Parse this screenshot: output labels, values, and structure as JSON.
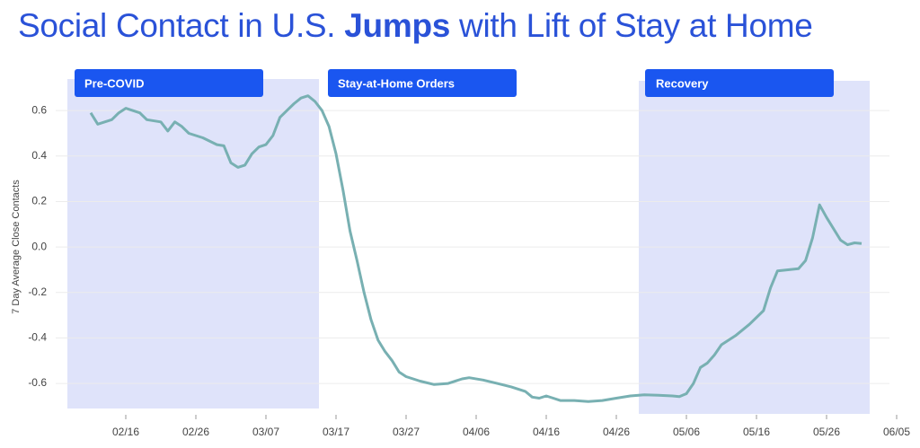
{
  "chart_data": {
    "type": "line",
    "title_start": "Social Contact in U.S.",
    "title_emphasis": "Jumps",
    "title_end": "with Lift of Stay at Home",
    "y_label": "7 Day Average Close Contacts",
    "periods": [
      "Pre-COVID",
      "Stay-at-Home Orders",
      "Recovery"
    ],
    "x": [
      "02/11",
      "02/12",
      "02/14",
      "02/15",
      "02/16",
      "02/18",
      "02/19",
      "02/21",
      "02/22",
      "02/23",
      "02/24",
      "02/25",
      "02/27",
      "02/29",
      "03/01",
      "03/02",
      "03/03",
      "03/04",
      "03/05",
      "03/06",
      "03/07",
      "03/08",
      "03/09",
      "03/10",
      "03/11",
      "03/12",
      "03/13",
      "03/14",
      "03/15",
      "03/16",
      "03/17",
      "03/18",
      "03/19",
      "03/20",
      "03/21",
      "03/22",
      "03/23",
      "03/24",
      "03/25",
      "03/26",
      "03/27",
      "03/29",
      "03/31",
      "04/02",
      "04/04",
      "04/05",
      "04/07",
      "04/09",
      "04/11",
      "04/13",
      "04/14",
      "04/15",
      "04/16",
      "04/17",
      "04/18",
      "04/20",
      "04/22",
      "04/24",
      "04/26",
      "04/28",
      "04/30",
      "05/02",
      "05/04",
      "05/05",
      "05/06",
      "05/07",
      "05/08",
      "05/09",
      "05/10",
      "05/11",
      "05/13",
      "05/15",
      "05/17",
      "05/18",
      "05/19",
      "05/22",
      "05/23",
      "05/24",
      "05/25",
      "05/26",
      "05/28",
      "05/29",
      "05/30",
      "05/31"
    ],
    "series": [
      {
        "name": "7 Day Average Close Contacts",
        "color": "#78b0b2",
        "values": [
          0.59,
          0.54,
          0.56,
          0.59,
          0.61,
          0.59,
          0.56,
          0.55,
          0.51,
          0.55,
          0.53,
          0.5,
          0.48,
          0.45,
          0.445,
          0.37,
          0.35,
          0.36,
          0.41,
          0.44,
          0.45,
          0.49,
          0.57,
          0.6,
          0.63,
          0.655,
          0.665,
          0.64,
          0.6,
          0.53,
          0.41,
          0.25,
          0.07,
          -0.06,
          -0.2,
          -0.32,
          -0.41,
          -0.46,
          -0.5,
          -0.55,
          -0.57,
          -0.59,
          -0.605,
          -0.6,
          -0.58,
          -0.575,
          -0.585,
          -0.6,
          -0.615,
          -0.635,
          -0.66,
          -0.665,
          -0.655,
          -0.665,
          -0.675,
          -0.675,
          -0.68,
          -0.675,
          -0.665,
          -0.655,
          -0.65,
          -0.652,
          -0.655,
          -0.658,
          -0.645,
          -0.6,
          -0.53,
          -0.51,
          -0.475,
          -0.43,
          -0.39,
          -0.34,
          -0.28,
          -0.18,
          -0.105,
          -0.095,
          -0.06,
          0.04,
          0.185,
          0.13,
          0.03,
          0.01,
          0.018,
          0.015
        ]
      }
    ],
    "xticks": [
      "02/16",
      "02/26",
      "03/07",
      "03/17",
      "03/27",
      "04/06",
      "04/16",
      "04/26",
      "05/06",
      "05/16",
      "05/26",
      "06/05"
    ],
    "ylim": [
      -0.73,
      0.79
    ],
    "yticks": [
      0.6,
      0.4,
      0.2,
      {
        "value": 0,
        "label": "0.0"
      },
      -0.2,
      -0.4,
      -0.6
    ],
    "grid": true
  }
}
